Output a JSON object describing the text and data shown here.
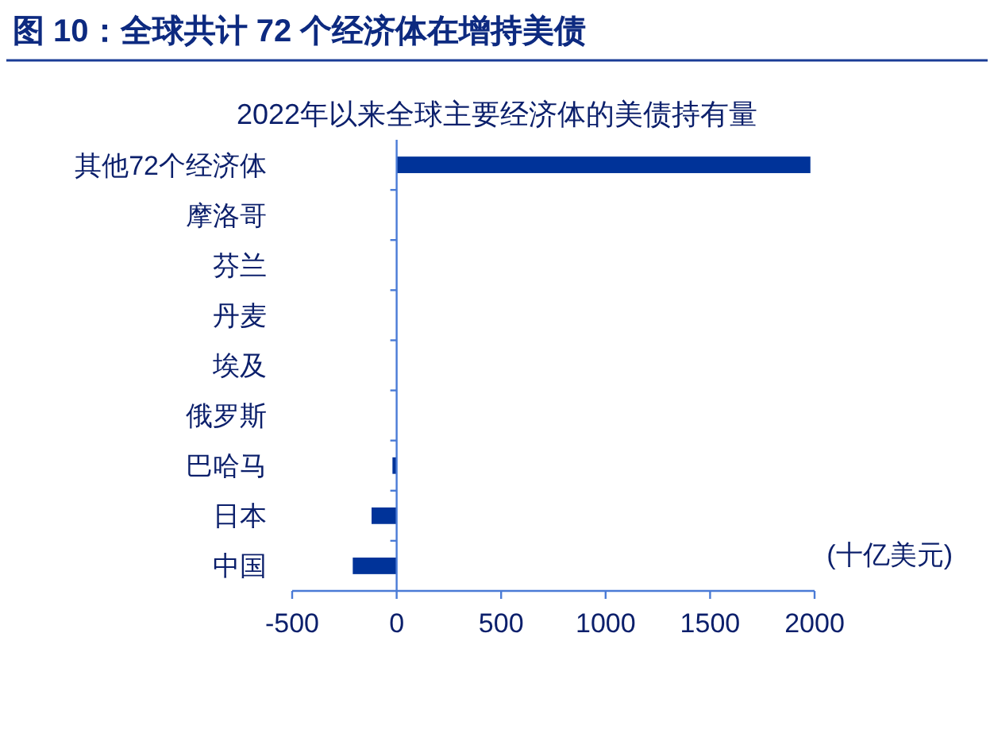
{
  "chart_data": {
    "type": "bar",
    "orientation": "horizontal",
    "title": "图 10：全球共计 72 个经济体在增持美债",
    "subtitle": "2022年以来全球主要经济体的美债持有量",
    "xlabel": "(十亿美元)",
    "categories": [
      "其他72个经济体",
      "摩洛哥",
      "芬兰",
      "丹麦",
      "埃及",
      "俄罗斯",
      "巴哈马",
      "日本",
      "中国"
    ],
    "values": [
      1980,
      0,
      0,
      0,
      0,
      0,
      -20,
      -120,
      -210
    ],
    "color": "#003399",
    "xlim": [
      -500,
      2000
    ],
    "xticks": [
      -500,
      0,
      500,
      1000,
      1500,
      2000
    ],
    "grid": false,
    "ref_lines": [
      {
        "axis": "x",
        "value": 0,
        "color": "#4a7bd6"
      }
    ]
  }
}
